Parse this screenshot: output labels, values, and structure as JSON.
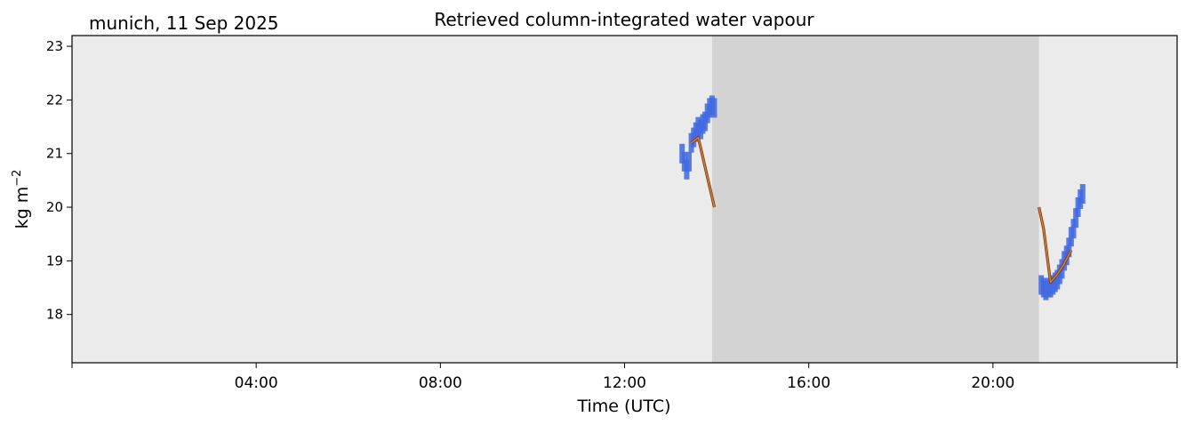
{
  "chart_data": {
    "type": "scatter",
    "title": "Retrieved column-integrated water vapour",
    "subtitle": "munich, 11 Sep 2025",
    "xlabel": "Time (UTC)",
    "ylabel_base": "kg m",
    "ylabel_exp": "−2",
    "x_unit": "hours UTC",
    "xlim": [
      0,
      24
    ],
    "ylim": [
      17.1,
      23.2
    ],
    "xticks": [
      {
        "x": 0,
        "label": ""
      },
      {
        "x": 4,
        "label": "04:00"
      },
      {
        "x": 8,
        "label": "08:00"
      },
      {
        "x": 12,
        "label": "12:00"
      },
      {
        "x": 16,
        "label": "16:00"
      },
      {
        "x": 20,
        "label": "20:00"
      },
      {
        "x": 24,
        "label": ""
      }
    ],
    "yticks": [
      {
        "y": 18,
        "label": "18"
      },
      {
        "y": 19,
        "label": "19"
      },
      {
        "y": 20,
        "label": "20"
      },
      {
        "y": 21,
        "label": "21"
      },
      {
        "y": 22,
        "label": "22"
      },
      {
        "y": 23,
        "label": "23"
      }
    ],
    "shaded_interval": {
      "x_start": 13.9,
      "x_end": 21.0,
      "color": "#d3d3d3"
    },
    "background_color": "#ebebeb",
    "grid": false,
    "series": [
      {
        "kind": "scatter",
        "color": "#4169e1",
        "points": [
          [
            13.25,
            21.0
          ],
          [
            13.3,
            20.85
          ],
          [
            13.35,
            20.7
          ],
          [
            13.4,
            20.85
          ],
          [
            13.45,
            21.2
          ],
          [
            13.5,
            21.3
          ],
          [
            13.55,
            21.4
          ],
          [
            13.6,
            21.5
          ],
          [
            13.65,
            21.45
          ],
          [
            13.7,
            21.55
          ],
          [
            13.75,
            21.6
          ],
          [
            13.8,
            21.75
          ],
          [
            13.85,
            21.85
          ],
          [
            13.9,
            21.9
          ],
          [
            13.95,
            21.85
          ],
          [
            21.05,
            18.55
          ],
          [
            21.1,
            18.5
          ],
          [
            21.15,
            18.45
          ],
          [
            21.2,
            18.5
          ],
          [
            21.25,
            18.5
          ],
          [
            21.3,
            18.55
          ],
          [
            21.35,
            18.6
          ],
          [
            21.4,
            18.65
          ],
          [
            21.45,
            18.75
          ],
          [
            21.5,
            18.85
          ],
          [
            21.55,
            19.0
          ],
          [
            21.6,
            19.1
          ],
          [
            21.65,
            19.25
          ],
          [
            21.7,
            19.45
          ],
          [
            21.75,
            19.6
          ],
          [
            21.8,
            19.8
          ],
          [
            21.85,
            20.0
          ],
          [
            21.9,
            20.15
          ],
          [
            21.95,
            20.25
          ]
        ]
      },
      {
        "kind": "line",
        "color": "#e07a30",
        "points": [
          [
            13.45,
            21.2
          ],
          [
            13.6,
            21.3
          ],
          [
            13.95,
            20.0
          ]
        ]
      },
      {
        "kind": "line",
        "color": "#e07a30",
        "points": [
          [
            21.0,
            20.0
          ],
          [
            21.1,
            19.6
          ],
          [
            21.25,
            18.6
          ],
          [
            21.4,
            18.75
          ],
          [
            21.55,
            18.95
          ],
          [
            21.7,
            19.2
          ]
        ]
      }
    ]
  }
}
